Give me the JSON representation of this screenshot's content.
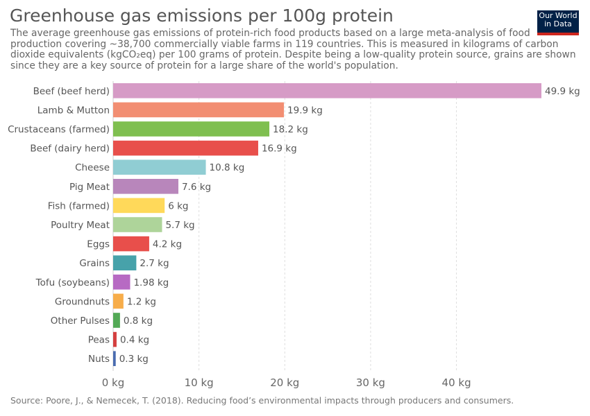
{
  "title": "Greenhouse gas emissions per 100g protein",
  "subtitle": "The average greenhouse gas emissions of protein-rich food products based on a large meta-analysis of food production covering ~38,700 commercially viable farms in 119 countries. This is measured in kilograms of carbon dioxide equivalents (kgCO₂eq) per 100 grams of protein. Despite being a low-quality protein source, grains are shown since they are a key source of protein for a large share of the world's population.",
  "logo": {
    "line1": "Our World",
    "line2": "in Data"
  },
  "source": "Source: Poore, J., & Nemecek, T. (2018). Reducing food’s environmental impacts through producers and consumers.",
  "chart_data": {
    "type": "bar",
    "orientation": "horizontal",
    "grid": true,
    "xlim": [
      0,
      50
    ],
    "x_ticks": [
      {
        "value": 0,
        "label": "0 kg"
      },
      {
        "value": 10,
        "label": "10 kg"
      },
      {
        "value": 20,
        "label": "20 kg"
      },
      {
        "value": 30,
        "label": "30 kg"
      },
      {
        "value": 40,
        "label": "40 kg"
      }
    ],
    "bars": [
      {
        "category": "Beef (beef herd)",
        "value": 49.9,
        "label": "49.9 kg",
        "color": "#d69bc6"
      },
      {
        "category": "Lamb & Mutton",
        "value": 19.9,
        "label": "19.9 kg",
        "color": "#f28e72"
      },
      {
        "category": "Crustaceans (farmed)",
        "value": 18.2,
        "label": "18.2 kg",
        "color": "#7fbf50"
      },
      {
        "category": "Beef (dairy herd)",
        "value": 16.9,
        "label": "16.9 kg",
        "color": "#e84f4b"
      },
      {
        "category": "Cheese",
        "value": 10.8,
        "label": "10.8 kg",
        "color": "#90cdd3"
      },
      {
        "category": "Pig Meat",
        "value": 7.6,
        "label": "7.6 kg",
        "color": "#b886bb"
      },
      {
        "category": "Fish (farmed)",
        "value": 6,
        "label": "6 kg",
        "color": "#ffd95a"
      },
      {
        "category": "Poultry Meat",
        "value": 5.7,
        "label": "5.7 kg",
        "color": "#aed49a"
      },
      {
        "category": "Eggs",
        "value": 4.2,
        "label": "4.2 kg",
        "color": "#e84f4b"
      },
      {
        "category": "Grains",
        "value": 2.7,
        "label": "2.7 kg",
        "color": "#47a2aa"
      },
      {
        "category": "Tofu (soybeans)",
        "value": 1.98,
        "label": "1.98 kg",
        "color": "#b76ac3"
      },
      {
        "category": "Groundnuts",
        "value": 1.2,
        "label": "1.2 kg",
        "color": "#f7ad4a"
      },
      {
        "category": "Other Pulses",
        "value": 0.8,
        "label": "0.8 kg",
        "color": "#53a956"
      },
      {
        "category": "Peas",
        "value": 0.4,
        "label": "0.4 kg",
        "color": "#d43f3f"
      },
      {
        "category": "Nuts",
        "value": 0.3,
        "label": "0.3 kg",
        "color": "#4a6cb0"
      }
    ]
  }
}
